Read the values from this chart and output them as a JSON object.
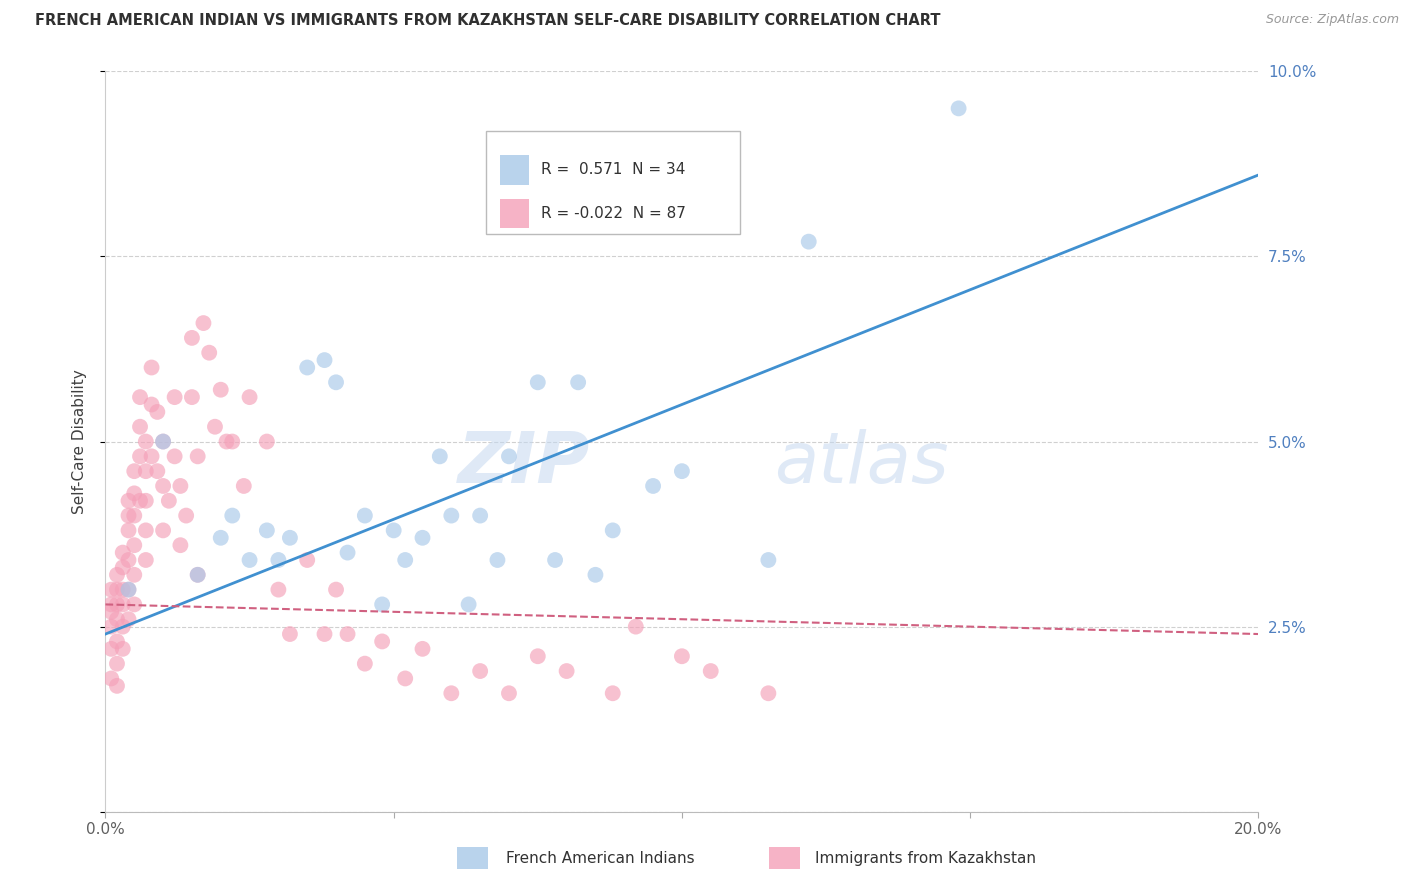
{
  "title": "FRENCH AMERICAN INDIAN VS IMMIGRANTS FROM KAZAKHSTAN SELF-CARE DISABILITY CORRELATION CHART",
  "source": "Source: ZipAtlas.com",
  "xlabel_blue": "French American Indians",
  "xlabel_pink": "Immigrants from Kazakhstan",
  "ylabel": "Self-Care Disability",
  "xlim": [
    0.0,
    0.2
  ],
  "ylim": [
    0.0,
    0.1
  ],
  "legend_blue_R": "0.571",
  "legend_blue_N": "34",
  "legend_pink_R": "-0.022",
  "legend_pink_N": "87",
  "blue_color": "#a8c8e8",
  "pink_color": "#f4a0b8",
  "trend_blue_color": "#4090d0",
  "trend_pink_color": "#d06080",
  "blue_scatter_x": [
    0.004,
    0.01,
    0.016,
    0.02,
    0.022,
    0.025,
    0.028,
    0.03,
    0.032,
    0.035,
    0.038,
    0.04,
    0.042,
    0.045,
    0.048,
    0.05,
    0.052,
    0.055,
    0.058,
    0.06,
    0.063,
    0.065,
    0.068,
    0.07,
    0.075,
    0.078,
    0.082,
    0.085,
    0.088,
    0.095,
    0.1,
    0.115,
    0.122,
    0.148
  ],
  "blue_scatter_y": [
    0.03,
    0.05,
    0.032,
    0.037,
    0.04,
    0.034,
    0.038,
    0.034,
    0.037,
    0.06,
    0.061,
    0.058,
    0.035,
    0.04,
    0.028,
    0.038,
    0.034,
    0.037,
    0.048,
    0.04,
    0.028,
    0.04,
    0.034,
    0.048,
    0.058,
    0.034,
    0.058,
    0.032,
    0.038,
    0.044,
    0.046,
    0.034,
    0.077,
    0.095
  ],
  "pink_scatter_x": [
    0.001,
    0.001,
    0.001,
    0.001,
    0.001,
    0.001,
    0.002,
    0.002,
    0.002,
    0.002,
    0.002,
    0.002,
    0.002,
    0.003,
    0.003,
    0.003,
    0.003,
    0.003,
    0.003,
    0.004,
    0.004,
    0.004,
    0.004,
    0.004,
    0.004,
    0.005,
    0.005,
    0.005,
    0.005,
    0.005,
    0.005,
    0.006,
    0.006,
    0.006,
    0.006,
    0.007,
    0.007,
    0.007,
    0.007,
    0.007,
    0.008,
    0.008,
    0.008,
    0.009,
    0.009,
    0.01,
    0.01,
    0.01,
    0.011,
    0.012,
    0.012,
    0.013,
    0.013,
    0.014,
    0.015,
    0.015,
    0.016,
    0.016,
    0.017,
    0.018,
    0.019,
    0.02,
    0.021,
    0.022,
    0.024,
    0.025,
    0.028,
    0.03,
    0.032,
    0.035,
    0.038,
    0.04,
    0.042,
    0.045,
    0.048,
    0.052,
    0.055,
    0.06,
    0.065,
    0.07,
    0.075,
    0.08,
    0.088,
    0.092,
    0.1,
    0.105,
    0.115
  ],
  "pink_scatter_y": [
    0.027,
    0.03,
    0.028,
    0.025,
    0.022,
    0.018,
    0.032,
    0.03,
    0.028,
    0.026,
    0.023,
    0.02,
    0.017,
    0.035,
    0.033,
    0.03,
    0.028,
    0.025,
    0.022,
    0.042,
    0.04,
    0.038,
    0.034,
    0.03,
    0.026,
    0.046,
    0.043,
    0.04,
    0.036,
    0.032,
    0.028,
    0.056,
    0.052,
    0.048,
    0.042,
    0.05,
    0.046,
    0.042,
    0.038,
    0.034,
    0.06,
    0.055,
    0.048,
    0.054,
    0.046,
    0.05,
    0.044,
    0.038,
    0.042,
    0.056,
    0.048,
    0.044,
    0.036,
    0.04,
    0.064,
    0.056,
    0.048,
    0.032,
    0.066,
    0.062,
    0.052,
    0.057,
    0.05,
    0.05,
    0.044,
    0.056,
    0.05,
    0.03,
    0.024,
    0.034,
    0.024,
    0.03,
    0.024,
    0.02,
    0.023,
    0.018,
    0.022,
    0.016,
    0.019,
    0.016,
    0.021,
    0.019,
    0.016,
    0.025,
    0.021,
    0.019,
    0.016
  ],
  "blue_trend_x": [
    0.0,
    0.2
  ],
  "blue_trend_y": [
    0.024,
    0.086
  ],
  "pink_trend_x": [
    0.0,
    0.2
  ],
  "pink_trend_y": [
    0.028,
    0.024
  ],
  "watermark_part1": "ZIP",
  "watermark_part2": "atlas",
  "background_color": "#ffffff",
  "grid_color": "#d0d0d0",
  "right_tick_color": "#5080c0",
  "title_color": "#303030",
  "axis_label_color": "#404040",
  "tick_color": "#606060"
}
